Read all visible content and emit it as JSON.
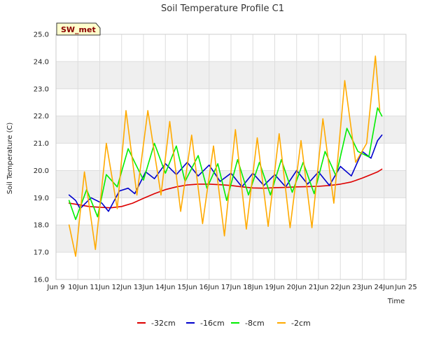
{
  "chart_data": {
    "type": "line",
    "title": "Soil Temperature Profile C1",
    "xlabel": "Time",
    "ylabel": "Soil Temperature (C)",
    "badge": "SW_met",
    "xlim": [
      9,
      25
    ],
    "ylim": [
      16,
      25
    ],
    "x_ticks": [
      {
        "value": 9,
        "label": "Jun 9"
      },
      {
        "value": 10,
        "label": "10Jun"
      },
      {
        "value": 11,
        "label": "11Jun"
      },
      {
        "value": 12,
        "label": "12Jun"
      },
      {
        "value": 13,
        "label": "13Jun"
      },
      {
        "value": 14,
        "label": "14Jun"
      },
      {
        "value": 15,
        "label": "15Jun"
      },
      {
        "value": 16,
        "label": "16Jun"
      },
      {
        "value": 17,
        "label": "17Jun"
      },
      {
        "value": 18,
        "label": "18Jun"
      },
      {
        "value": 19,
        "label": "19Jun"
      },
      {
        "value": 20,
        "label": "20Jun"
      },
      {
        "value": 21,
        "label": "21Jun"
      },
      {
        "value": 22,
        "label": "22Jun"
      },
      {
        "value": 23,
        "label": "23Jun"
      },
      {
        "value": 24,
        "label": "24Jun"
      },
      {
        "value": 25,
        "label": "Jun 25"
      }
    ],
    "y_ticks": [
      16.0,
      17.0,
      18.0,
      19.0,
      20.0,
      21.0,
      22.0,
      23.0,
      24.0,
      25.0
    ],
    "y_tick_labels": [
      "16.0",
      "17.0",
      "18.0",
      "19.0",
      "20.0",
      "21.0",
      "22.0",
      "23.0",
      "24.0",
      "25.0"
    ],
    "grid": true,
    "legend_position": "bottom",
    "series": [
      {
        "name": "-32cm",
        "color": "#dd0000",
        "x": [
          9.6,
          10.0,
          10.5,
          11.0,
          11.5,
          12.0,
          12.5,
          13.0,
          13.5,
          14.0,
          14.5,
          15.0,
          15.5,
          16.0,
          16.5,
          17.0,
          17.5,
          18.0,
          18.5,
          19.0,
          19.5,
          20.0,
          20.5,
          21.0,
          21.5,
          22.0,
          22.5,
          23.0,
          23.4,
          23.7,
          23.9
        ],
        "y": [
          18.8,
          18.75,
          18.68,
          18.65,
          18.63,
          18.68,
          18.8,
          18.98,
          19.15,
          19.3,
          19.4,
          19.47,
          19.5,
          19.5,
          19.48,
          19.45,
          19.4,
          19.36,
          19.35,
          19.37,
          19.38,
          19.4,
          19.41,
          19.42,
          19.45,
          19.5,
          19.58,
          19.72,
          19.85,
          19.95,
          20.05
        ]
      },
      {
        "name": "-16cm",
        "color": "#0000cc",
        "x": [
          9.6,
          9.9,
          10.1,
          10.6,
          11.1,
          11.4,
          11.9,
          12.3,
          12.6,
          13.1,
          13.5,
          14.0,
          14.5,
          15.0,
          15.5,
          16.0,
          16.5,
          17.0,
          17.5,
          18.0,
          18.5,
          19.0,
          19.5,
          20.0,
          20.5,
          21.0,
          21.5,
          22.0,
          22.5,
          23.0,
          23.4,
          23.7,
          23.9
        ],
        "y": [
          19.1,
          18.9,
          18.6,
          19.0,
          18.8,
          18.5,
          19.25,
          19.35,
          19.15,
          19.95,
          19.7,
          20.25,
          19.85,
          20.3,
          19.8,
          20.2,
          19.6,
          19.9,
          19.4,
          19.9,
          19.45,
          19.85,
          19.4,
          20.0,
          19.5,
          19.95,
          19.45,
          20.15,
          19.8,
          20.7,
          20.45,
          21.1,
          21.3
        ]
      },
      {
        "name": "-8cm",
        "color": "#00ee00",
        "x": [
          9.6,
          9.9,
          10.4,
          10.9,
          11.3,
          11.8,
          12.3,
          12.6,
          13.0,
          13.5,
          14.0,
          14.5,
          14.9,
          15.5,
          15.9,
          16.4,
          16.8,
          17.3,
          17.8,
          18.3,
          18.8,
          19.3,
          19.8,
          20.3,
          20.8,
          21.3,
          21.8,
          22.3,
          22.8,
          23.3,
          23.7,
          23.9
        ],
        "y": [
          18.9,
          18.2,
          19.3,
          18.3,
          19.85,
          19.4,
          20.8,
          20.3,
          19.65,
          21.0,
          19.9,
          20.9,
          19.6,
          20.55,
          19.35,
          20.25,
          18.9,
          20.4,
          19.1,
          20.3,
          19.1,
          20.4,
          19.2,
          20.3,
          19.15,
          20.7,
          19.8,
          21.55,
          20.7,
          20.5,
          22.3,
          22.0
        ]
      },
      {
        "name": "-2cm",
        "color": "#ffaa00",
        "x": [
          9.6,
          9.9,
          10.3,
          10.8,
          11.3,
          11.8,
          12.2,
          12.7,
          13.2,
          13.8,
          14.2,
          14.7,
          15.2,
          15.7,
          16.2,
          16.7,
          17.2,
          17.7,
          18.2,
          18.7,
          19.2,
          19.7,
          20.2,
          20.7,
          21.2,
          21.7,
          22.2,
          22.7,
          23.2,
          23.6,
          23.8
        ],
        "y": [
          18.0,
          16.85,
          19.95,
          17.1,
          21.0,
          18.6,
          22.2,
          19.1,
          22.2,
          19.1,
          21.8,
          18.5,
          21.3,
          18.05,
          20.9,
          17.6,
          21.5,
          17.85,
          21.2,
          17.95,
          21.35,
          17.9,
          21.1,
          17.9,
          21.9,
          18.8,
          23.3,
          20.3,
          21.0,
          24.2,
          22.2
        ]
      }
    ]
  }
}
